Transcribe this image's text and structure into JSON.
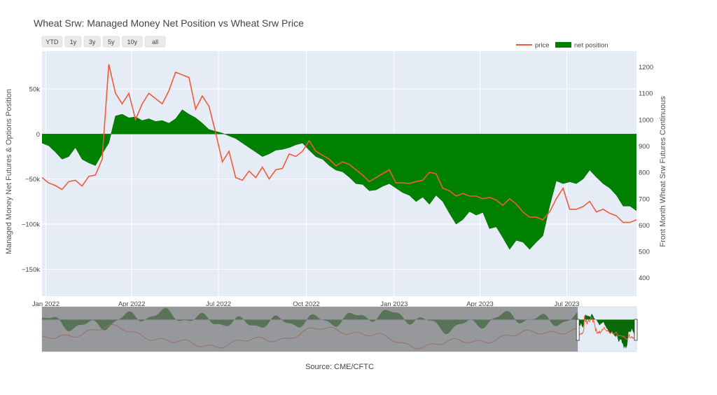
{
  "chart_data": {
    "type": "area+line",
    "title": "Wheat Srw: Managed Money Net Position vs Wheat Srw Price",
    "source": "Source: CME/CFTC",
    "range_buttons": [
      "YTD",
      "1y",
      "3y",
      "5y",
      "10y",
      "all"
    ],
    "legend": {
      "placement": "top-right",
      "items": [
        "price",
        "net position"
      ]
    },
    "colors": {
      "price": "#ef5a3a",
      "net_position": "#008000",
      "plot_bg": "#e5ecf6",
      "grid": "#ffffff"
    },
    "y_left": {
      "label": "Managed Money Net Futures & Options Position",
      "range": [
        -180000,
        92000
      ],
      "ticks": [
        50000,
        0,
        -50000,
        -100000,
        -150000
      ],
      "tick_labels": [
        "50k",
        "0",
        "−50k",
        "−100k",
        "−150k"
      ]
    },
    "y_right": {
      "label": "Front Month Wheat Srw Futures Continuous",
      "range": [
        330,
        1260
      ],
      "ticks": [
        400,
        500,
        600,
        700,
        800,
        900,
        1000,
        1100,
        1200
      ],
      "tick_labels": [
        "400",
        "500",
        "600",
        "700",
        "800",
        "900",
        "1000",
        "1100",
        "1200"
      ]
    },
    "x": {
      "range": [
        "2021-12-28",
        "2023-09-12"
      ],
      "ticks": [
        "2022-01-01",
        "2022-04-01",
        "2022-07-01",
        "2022-10-01",
        "2023-01-01",
        "2023-04-01",
        "2023-07-01"
      ],
      "tick_labels": [
        "Jan 2022",
        "Apr 2022",
        "Jul 2022",
        "Oct 2022",
        "Jan 2023",
        "Apr 2023",
        "Jul 2023"
      ]
    },
    "net_position": {
      "name": "net position",
      "dates": [
        "2021-12-28",
        "2022-01-04",
        "2022-01-11",
        "2022-01-18",
        "2022-01-25",
        "2022-02-01",
        "2022-02-08",
        "2022-02-15",
        "2022-02-22",
        "2022-03-01",
        "2022-03-08",
        "2022-03-15",
        "2022-03-22",
        "2022-03-29",
        "2022-04-05",
        "2022-04-12",
        "2022-04-19",
        "2022-04-26",
        "2022-05-03",
        "2022-05-10",
        "2022-05-17",
        "2022-05-24",
        "2022-05-31",
        "2022-06-07",
        "2022-06-14",
        "2022-06-21",
        "2022-06-28",
        "2022-07-05",
        "2022-07-12",
        "2022-07-19",
        "2022-07-26",
        "2022-08-02",
        "2022-08-09",
        "2022-08-16",
        "2022-08-23",
        "2022-08-30",
        "2022-09-06",
        "2022-09-13",
        "2022-09-20",
        "2022-09-27",
        "2022-10-04",
        "2022-10-11",
        "2022-10-18",
        "2022-10-25",
        "2022-11-01",
        "2022-11-08",
        "2022-11-15",
        "2022-11-22",
        "2022-11-29",
        "2022-12-06",
        "2022-12-13",
        "2022-12-20",
        "2022-12-27",
        "2023-01-03",
        "2023-01-10",
        "2023-01-17",
        "2023-01-24",
        "2023-01-31",
        "2023-02-07",
        "2023-02-14",
        "2023-02-21",
        "2023-02-28",
        "2023-03-07",
        "2023-03-14",
        "2023-03-21",
        "2023-03-28",
        "2023-04-04",
        "2023-04-11",
        "2023-04-18",
        "2023-04-25",
        "2023-05-02",
        "2023-05-09",
        "2023-05-16",
        "2023-05-23",
        "2023-05-30",
        "2023-06-06",
        "2023-06-13",
        "2023-06-20",
        "2023-06-27",
        "2023-07-04",
        "2023-07-11",
        "2023-07-18",
        "2023-07-25",
        "2023-08-01",
        "2023-08-08",
        "2023-08-15",
        "2023-08-22",
        "2023-08-29",
        "2023-09-05",
        "2023-09-12"
      ],
      "values": [
        -10000,
        -13000,
        -20000,
        -28000,
        -25000,
        -15000,
        -28000,
        -32000,
        -35000,
        -22000,
        -10000,
        20000,
        22000,
        18000,
        19000,
        15000,
        17000,
        14000,
        15000,
        12000,
        17000,
        27000,
        22000,
        18000,
        12000,
        5000,
        3000,
        1000,
        -2000,
        -5000,
        -10000,
        -15000,
        -20000,
        -25000,
        -22000,
        -18000,
        -17000,
        -15000,
        -12000,
        -10000,
        -18000,
        -25000,
        -28000,
        -35000,
        -40000,
        -42000,
        -48000,
        -55000,
        -56000,
        -63000,
        -62000,
        -58000,
        -55000,
        -60000,
        -65000,
        -68000,
        -75000,
        -70000,
        -78000,
        -68000,
        -75000,
        -88000,
        -100000,
        -95000,
        -86000,
        -90000,
        -87000,
        -105000,
        -103000,
        -115000,
        -128000,
        -118000,
        -120000,
        -128000,
        -120000,
        -113000,
        -80000,
        -52000,
        -55000,
        -53000,
        -55000,
        -50000,
        -40000,
        -48000,
        -55000,
        -60000,
        -68000,
        -80000,
        -80000,
        -85000
      ]
    },
    "price": {
      "name": "price",
      "dates": [
        "2021-12-28",
        "2022-01-04",
        "2022-01-11",
        "2022-01-18",
        "2022-01-25",
        "2022-02-01",
        "2022-02-08",
        "2022-02-15",
        "2022-02-22",
        "2022-03-01",
        "2022-03-08",
        "2022-03-15",
        "2022-03-22",
        "2022-03-29",
        "2022-04-05",
        "2022-04-12",
        "2022-04-19",
        "2022-04-26",
        "2022-05-03",
        "2022-05-10",
        "2022-05-17",
        "2022-05-24",
        "2022-05-31",
        "2022-06-07",
        "2022-06-14",
        "2022-06-21",
        "2022-06-28",
        "2022-07-05",
        "2022-07-12",
        "2022-07-19",
        "2022-07-26",
        "2022-08-02",
        "2022-08-09",
        "2022-08-16",
        "2022-08-23",
        "2022-08-30",
        "2022-09-06",
        "2022-09-13",
        "2022-09-20",
        "2022-09-27",
        "2022-10-04",
        "2022-10-11",
        "2022-10-18",
        "2022-10-25",
        "2022-11-01",
        "2022-11-08",
        "2022-11-15",
        "2022-11-22",
        "2022-11-29",
        "2022-12-06",
        "2022-12-13",
        "2022-12-20",
        "2022-12-27",
        "2023-01-03",
        "2023-01-10",
        "2023-01-17",
        "2023-01-24",
        "2023-01-31",
        "2023-02-07",
        "2023-02-14",
        "2023-02-21",
        "2023-02-28",
        "2023-03-07",
        "2023-03-14",
        "2023-03-21",
        "2023-03-28",
        "2023-04-04",
        "2023-04-11",
        "2023-04-18",
        "2023-04-25",
        "2023-05-02",
        "2023-05-09",
        "2023-05-16",
        "2023-05-23",
        "2023-05-30",
        "2023-06-06",
        "2023-06-13",
        "2023-06-20",
        "2023-06-27",
        "2023-07-04",
        "2023-07-11",
        "2023-07-18",
        "2023-07-25",
        "2023-08-01",
        "2023-08-08",
        "2023-08-15",
        "2023-08-22",
        "2023-08-29",
        "2023-09-05",
        "2023-09-12"
      ],
      "values": [
        780,
        760,
        750,
        735,
        765,
        770,
        748,
        785,
        790,
        850,
        1210,
        1100,
        1060,
        1100,
        1000,
        1060,
        1100,
        1080,
        1060,
        1110,
        1180,
        1170,
        1160,
        1040,
        1090,
        1050,
        950,
        840,
        880,
        780,
        770,
        805,
        780,
        820,
        775,
        810,
        815,
        870,
        860,
        880,
        920,
        880,
        865,
        850,
        825,
        840,
        830,
        810,
        790,
        765,
        780,
        795,
        810,
        760,
        760,
        758,
        765,
        770,
        800,
        795,
        740,
        730,
        710,
        720,
        710,
        710,
        700,
        705,
        695,
        675,
        700,
        680,
        650,
        630,
        630,
        620,
        650,
        700,
        740,
        660,
        660,
        670,
        690,
        650,
        660,
        645,
        635,
        610,
        610,
        620
      ]
    },
    "rangeslider": {
      "overview_range": [
        "2006-06-01",
        "2023-09-12"
      ],
      "selected_range": [
        "2021-12-28",
        "2023-09-12"
      ]
    }
  }
}
